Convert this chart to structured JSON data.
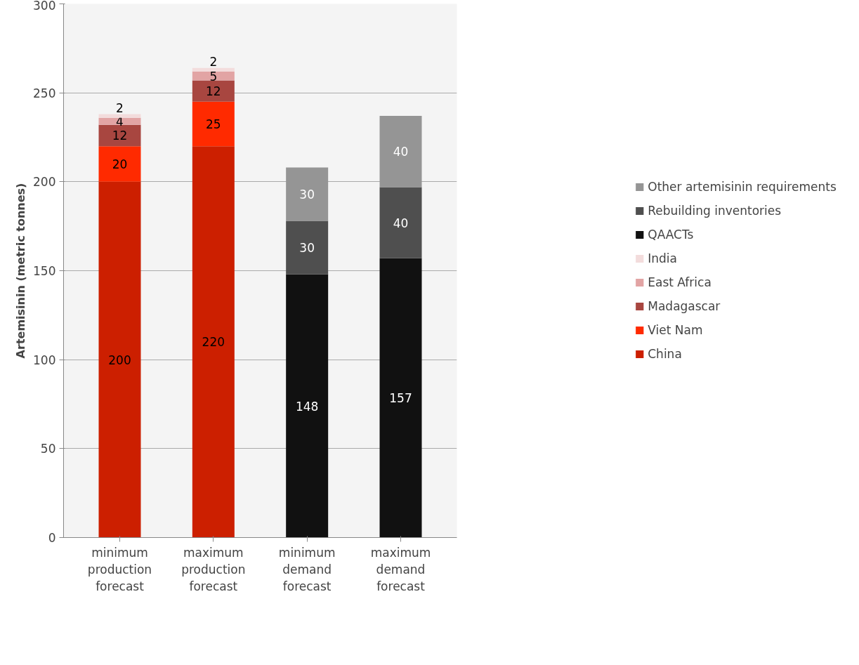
{
  "chart_data": {
    "type": "bar",
    "stacked": true,
    "ylabel": "Artemisinin (metric tonnes)",
    "categories": [
      "minimum production forecast",
      "maximum production forecast",
      "minimum demand forecast",
      "maximum demand forecast"
    ],
    "series": [
      {
        "name": "China",
        "color": "#cc1f00",
        "values": [
          200,
          220,
          null,
          null
        ]
      },
      {
        "name": "Viet Nam",
        "color": "#ff2a00",
        "values": [
          20,
          25,
          null,
          null
        ]
      },
      {
        "name": "Madagascar",
        "color": "#a84640",
        "values": [
          12,
          12,
          null,
          null
        ]
      },
      {
        "name": "East Africa",
        "color": "#e2a4a4",
        "values": [
          4,
          5,
          null,
          null
        ]
      },
      {
        "name": "India",
        "color": "#f3dcdc",
        "values": [
          2,
          2,
          null,
          null
        ]
      },
      {
        "name": "QAACTs",
        "color": "#111111",
        "values": [
          null,
          null,
          148,
          157
        ]
      },
      {
        "name": "Rebuilding inventories",
        "color": "#4f4f4f",
        "values": [
          null,
          null,
          30,
          40
        ]
      },
      {
        "name": "Other artemisinin requirements",
        "color": "#959595",
        "values": [
          null,
          null,
          30,
          40
        ]
      }
    ],
    "ylim": [
      0,
      300
    ],
    "yticks": [
      0,
      50,
      100,
      150,
      200,
      250,
      300
    ],
    "grid": "y",
    "legend": "right",
    "data_labels": true
  }
}
